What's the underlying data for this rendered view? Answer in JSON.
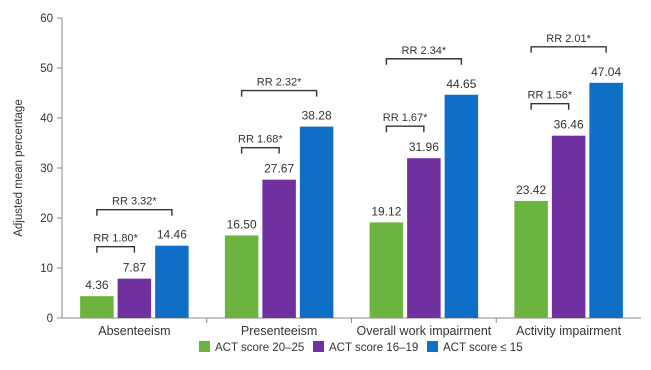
{
  "chart_data": {
    "type": "bar",
    "title": "",
    "xlabel": "",
    "ylabel": "Adjusted mean percentage",
    "ylim": [
      0,
      60
    ],
    "yticks": [
      0,
      10,
      20,
      30,
      40,
      50,
      60
    ],
    "grid": false,
    "legend_position": "bottom",
    "categories": [
      "Absenteeism",
      "Presenteeism",
      "Overall work impairment",
      "Activity impairment"
    ],
    "series": [
      {
        "name": "ACT score  20–25",
        "color": "#6db33f",
        "values": [
          4.36,
          16.5,
          19.12,
          23.42
        ],
        "labels": [
          "4.36",
          "16.50",
          "19.12",
          "23.42"
        ]
      },
      {
        "name": "ACT score 16–19",
        "color": "#7030a0",
        "values": [
          7.87,
          27.67,
          31.96,
          36.46
        ],
        "labels": [
          "7.87",
          "27.67",
          "31.96",
          "36.46"
        ]
      },
      {
        "name": "ACT score ≤ 15",
        "color": "#0f6fc6",
        "values": [
          14.46,
          38.28,
          44.65,
          47.04
        ],
        "labels": [
          "14.46",
          "38.28",
          "44.65",
          "47.04"
        ]
      }
    ],
    "annotations": [
      {
        "category": 0,
        "text": "RR 1.80*",
        "from_series": 0,
        "to_series": 1
      },
      {
        "category": 0,
        "text": "RR 3.32*",
        "from_series": 0,
        "to_series": 2
      },
      {
        "category": 1,
        "text": "RR 1.68*",
        "from_series": 0,
        "to_series": 1
      },
      {
        "category": 1,
        "text": "RR 2.32*",
        "from_series": 0,
        "to_series": 2
      },
      {
        "category": 2,
        "text": "RR 1.67*",
        "from_series": 0,
        "to_series": 1
      },
      {
        "category": 2,
        "text": "RR 2.34*",
        "from_series": 0,
        "to_series": 2
      },
      {
        "category": 3,
        "text": "RR 1.56*",
        "from_series": 0,
        "to_series": 1
      },
      {
        "category": 3,
        "text": "RR 2.01*",
        "from_series": 0,
        "to_series": 2
      }
    ]
  }
}
